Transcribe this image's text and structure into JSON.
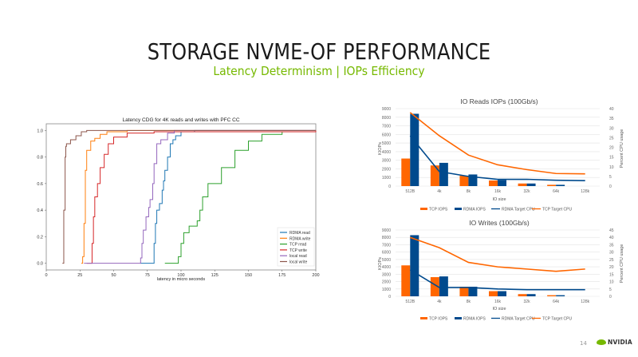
{
  "slide": {
    "title": "STORAGE NVME-OF PERFORMANCE",
    "subtitle": "Latency Determinism | IOPs Efficiency",
    "page_number": "14",
    "logo_text": "NVIDIA",
    "accent_color": "#76b900"
  },
  "chart_data": [
    {
      "type": "line",
      "title": "Latency CDG for 4K reads and writes with PFC CC",
      "xlabel": "latency in micro seconds",
      "ylabel": "",
      "xlim": [
        0,
        200
      ],
      "ylim": [
        -0.05,
        1.05
      ],
      "xticks": [
        "0",
        "25",
        "50",
        "75",
        "100",
        "125",
        "150",
        "175",
        "200"
      ],
      "yticks": [
        "0.0",
        "0.2",
        "0.4",
        "0.6",
        "0.8",
        "1.0"
      ],
      "legend_position": "bottom-right",
      "series": [
        {
          "name": "RDMA read",
          "color": "#1f77b4",
          "x": [
            70,
            79,
            80,
            81,
            82,
            84,
            86,
            87,
            88,
            90,
            92,
            94,
            96,
            100,
            110,
            200
          ],
          "y": [
            0,
            0,
            0.15,
            0.3,
            0.4,
            0.45,
            0.55,
            0.62,
            0.7,
            0.8,
            0.9,
            0.93,
            0.96,
            0.99,
            1.0,
            1.0
          ]
        },
        {
          "name": "RDMA write",
          "color": "#ff7f0e",
          "x": [
            26,
            27,
            28,
            29,
            30,
            33,
            36,
            40,
            45,
            60,
            200
          ],
          "y": [
            0,
            0.05,
            0.3,
            0.7,
            0.85,
            0.92,
            0.94,
            0.97,
            0.99,
            1.0,
            1.0
          ]
        },
        {
          "name": "TCP read",
          "color": "#2ca02c",
          "x": [
            88,
            97,
            98,
            100,
            102,
            106,
            112,
            114,
            116,
            120,
            130,
            140,
            150,
            160,
            175,
            200
          ],
          "y": [
            0,
            0,
            0.05,
            0.15,
            0.23,
            0.28,
            0.32,
            0.4,
            0.5,
            0.6,
            0.72,
            0.85,
            0.92,
            0.97,
            0.99,
            1.0
          ]
        },
        {
          "name": "TCP write",
          "color": "#d62728",
          "x": [
            30,
            33,
            34,
            35,
            36,
            38,
            40,
            43,
            46,
            50,
            60,
            80,
            200
          ],
          "y": [
            0,
            0,
            0.15,
            0.35,
            0.5,
            0.6,
            0.72,
            0.82,
            0.9,
            0.95,
            0.98,
            0.99,
            1.0
          ]
        },
        {
          "name": "local read",
          "color": "#9467bd",
          "x": [
            28,
            60,
            70,
            71,
            72,
            74,
            76,
            77,
            78,
            79,
            80,
            82,
            85,
            90,
            95,
            200
          ],
          "y": [
            0,
            0,
            0.04,
            0.15,
            0.25,
            0.35,
            0.42,
            0.48,
            0.48,
            0.6,
            0.75,
            0.9,
            0.93,
            0.98,
            1.0,
            1.0
          ]
        },
        {
          "name": "local write",
          "color": "#8c564b",
          "x": [
            12,
            13,
            14,
            14.5,
            15,
            18,
            22,
            26,
            30,
            200
          ],
          "y": [
            0,
            0.4,
            0.8,
            0.88,
            0.9,
            0.93,
            0.96,
            0.99,
            1.0,
            1.0
          ]
        }
      ]
    },
    {
      "type": "bar",
      "title": "IO Reads IOPs (100Gb/s)",
      "xlabel": "IO size",
      "ylabel": "KIOPs",
      "y2label": "Percent CPU usage",
      "categories": [
        "512B",
        "4k",
        "8k",
        "16k",
        "32k",
        "64k",
        "128k"
      ],
      "ylim": [
        0,
        9000
      ],
      "y2lim": [
        0,
        40
      ],
      "yticks": [
        "0",
        "1000",
        "2000",
        "3000",
        "4000",
        "5000",
        "6000",
        "7000",
        "8000",
        "9000"
      ],
      "y2ticks": [
        "0",
        "5",
        "10",
        "15",
        "20",
        "25",
        "30",
        "35",
        "40"
      ],
      "legend_position": "bottom",
      "series": [
        {
          "name": "TCP IOPS",
          "kind": "bar",
          "axis": "left",
          "color": "#ff6600",
          "values": [
            3200,
            2400,
            1200,
            650,
            300,
            150,
            0
          ]
        },
        {
          "name": "RDMA IOPS",
          "kind": "bar",
          "axis": "left",
          "color": "#004a8d",
          "values": [
            8400,
            2700,
            1350,
            700,
            300,
            150,
            0
          ]
        },
        {
          "name": "RDMA Target CPU",
          "kind": "line",
          "axis": "right",
          "color": "#004a8d",
          "values": [
            26,
            7.5,
            5,
            3.5,
            3.5,
            3,
            2.8
          ]
        },
        {
          "name": "TCP Target CPU",
          "kind": "line",
          "axis": "right",
          "color": "#ff6600",
          "values": [
            38,
            26,
            16,
            11,
            8.5,
            6.5,
            6.3
          ]
        }
      ]
    },
    {
      "type": "bar",
      "title": "IO Writes (100Gb/s)",
      "xlabel": "IO size",
      "ylabel": "KIOPs",
      "y2label": "Percent CPU usage",
      "categories": [
        "512B",
        "4k",
        "8k",
        "16k",
        "32k",
        "64k",
        "128k"
      ],
      "ylim": [
        0,
        9000
      ],
      "y2lim": [
        0,
        45
      ],
      "yticks": [
        "0",
        "1000",
        "2000",
        "3000",
        "4000",
        "5000",
        "6000",
        "7000",
        "8000",
        "9000"
      ],
      "y2ticks": [
        "0",
        "5",
        "10",
        "15",
        "20",
        "25",
        "30",
        "35",
        "40",
        "45"
      ],
      "legend_position": "bottom",
      "series": [
        {
          "name": "TCP IOPS",
          "kind": "bar",
          "axis": "left",
          "color": "#ff6600",
          "values": [
            4200,
            2600,
            1300,
            700,
            300,
            150,
            0
          ]
        },
        {
          "name": "RDMA IOPS",
          "kind": "bar",
          "axis": "left",
          "color": "#004a8d",
          "values": [
            8300,
            2700,
            1300,
            700,
            300,
            150,
            0
          ]
        },
        {
          "name": "RDMA Target CPU",
          "kind": "line",
          "axis": "right",
          "color": "#004a8d",
          "values": [
            18,
            6,
            6,
            5,
            4.5,
            4.5,
            4.5
          ]
        },
        {
          "name": "TCP Target CPU",
          "kind": "line",
          "axis": "right",
          "color": "#ff6600",
          "values": [
            40,
            33,
            23,
            20,
            18.5,
            17,
            18.5
          ]
        }
      ]
    }
  ]
}
